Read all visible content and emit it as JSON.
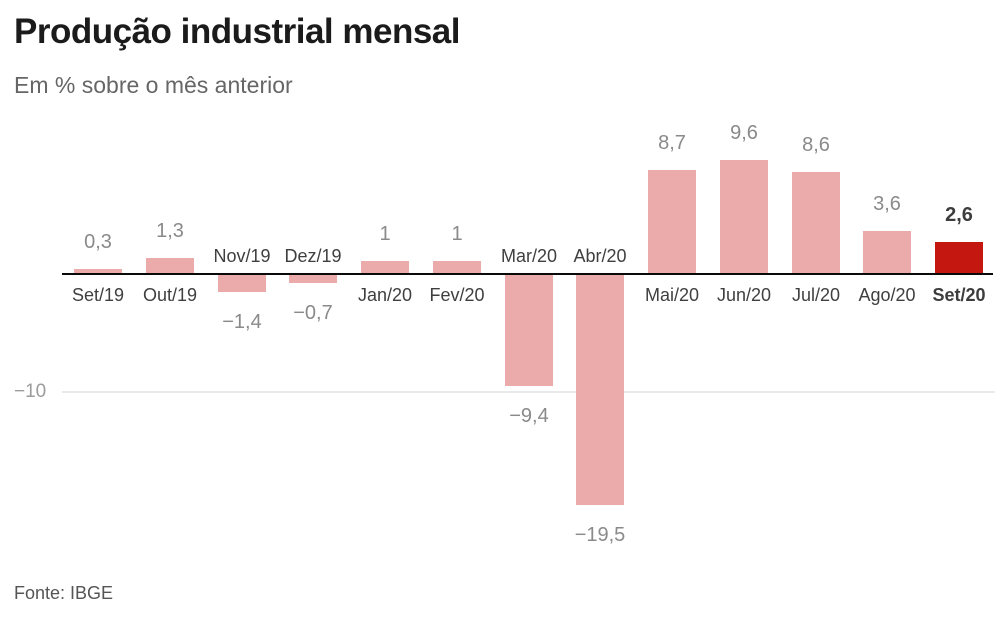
{
  "header": {
    "title": "Produção industrial mensal",
    "subtitle": "Em % sobre o mês anterior"
  },
  "footer": {
    "source": "Fonte: IBGE"
  },
  "chart_data": {
    "type": "bar",
    "title": "Produção industrial mensal",
    "subtitle": "Em % sobre o mês anterior",
    "categories": [
      "Set/19",
      "Out/19",
      "Nov/19",
      "Dez/19",
      "Jan/20",
      "Fev/20",
      "Mar/20",
      "Abr/20",
      "Mai/20",
      "Jun/20",
      "Jul/20",
      "Ago/20",
      "Set/20"
    ],
    "values": [
      0.3,
      1.3,
      -1.4,
      -0.7,
      1,
      1,
      -9.4,
      -19.5,
      8.7,
      9.6,
      8.6,
      3.6,
      2.6
    ],
    "value_labels": [
      "0,3",
      "1,3",
      "−1,4",
      "−0,7",
      "1",
      "1",
      "−9,4",
      "−19,5",
      "8,7",
      "9,6",
      "8,6",
      "3,6",
      "2,6"
    ],
    "highlight_index": 12,
    "xlabel": "",
    "ylabel": "%",
    "ylim": [
      -21,
      11
    ],
    "y_gridlines": [
      {
        "value": -10,
        "label": "−10"
      }
    ],
    "legend": "none",
    "grid": "single light horizontal gridline at -10; black zero baseline",
    "label_style": "positive bars: category below axis and value above bar; negative bars: category above axis and value below bar",
    "colors": {
      "bar": "#eaabaa",
      "highlight_bar": "#c4170f",
      "axis": "#0a0a0a",
      "gridline": "#e9e9e9",
      "grid_label": "#9c9c9c",
      "value_label": "#8a8a8a",
      "category_label": "#3f3f3f",
      "highlight_label": "#3d3d3d"
    },
    "source": "Fonte: IBGE"
  }
}
